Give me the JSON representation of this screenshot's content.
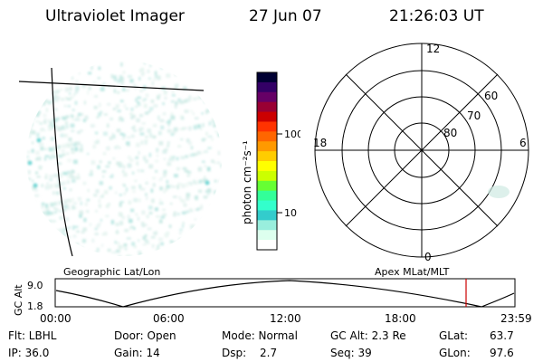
{
  "header": {
    "title": "Ultraviolet Imager",
    "date": "27 Jun 07",
    "time": "21:26:03 UT"
  },
  "colorbar": {
    "unit_label": "photon cm⁻²s⁻¹",
    "ticks": [
      "100",
      "10"
    ],
    "colors": [
      "#000033",
      "#330066",
      "#660066",
      "#990033",
      "#cc0000",
      "#ff3300",
      "#ff6600",
      "#ff9900",
      "#ffcc00",
      "#ffff00",
      "#ccff00",
      "#66ff33",
      "#33ff99",
      "#33ffcc",
      "#33cccc",
      "#99eedd",
      "#ddffee",
      "#ffffff"
    ]
  },
  "polar": {
    "mlt_labels": {
      "top": "12",
      "bottom": "0",
      "left": "18",
      "right": "6"
    },
    "lat_labels": [
      "60",
      "70",
      "80"
    ]
  },
  "altitude_plot": {
    "left_title": "Geographic Lat/Lon",
    "right_title": "Apex  MLat/MLT",
    "ylabel": "GC Alt",
    "ytick_top": "9.0",
    "ytick_bottom": "1.8",
    "xticks": [
      "00:00",
      "06:00",
      "12:00",
      "18:00",
      "23:59"
    ],
    "current_time_marker_color": "#cc0000"
  },
  "info": {
    "row1": {
      "flt": "Flt: LBHL",
      "door": "Door: Open",
      "mode": "Mode: Normal",
      "gc_alt": "GC Alt: 2.3 Re",
      "glat_label": "GLat:",
      "glat_value": "63.7"
    },
    "row2": {
      "ip": "IP: 36.0",
      "gain": "Gain: 14",
      "dsp_label": "Dsp:",
      "dsp_value": "2.7",
      "seq": "Seq: 39",
      "glon_label": "GLon:",
      "glon_value": "97.6"
    }
  }
}
